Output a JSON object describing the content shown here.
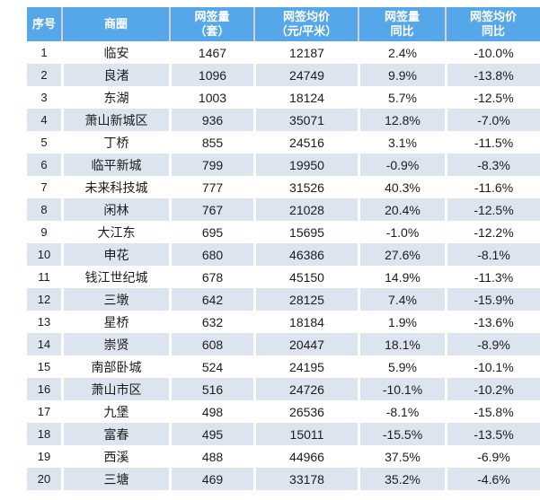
{
  "chart_data": {
    "type": "table",
    "title": "",
    "columns": [
      {
        "id": "rank",
        "line1": "序号",
        "line2": ""
      },
      {
        "id": "district",
        "line1": "商圈",
        "line2": ""
      },
      {
        "id": "volume",
        "line1": "网签量",
        "line2": "（套）"
      },
      {
        "id": "avg_price",
        "line1": "网签均价",
        "line2": "（元/平米）"
      },
      {
        "id": "volume_yoy",
        "line1": "网签量",
        "line2": "同比"
      },
      {
        "id": "price_yoy",
        "line1": "网签均价",
        "line2": "同比"
      }
    ],
    "rows": [
      {
        "rank": "1",
        "district": "临安",
        "volume": "1467",
        "avg_price": "12187",
        "volume_yoy": "2.4%",
        "price_yoy": "-10.0%"
      },
      {
        "rank": "2",
        "district": "良渚",
        "volume": "1096",
        "avg_price": "24749",
        "volume_yoy": "9.9%",
        "price_yoy": "-13.8%"
      },
      {
        "rank": "3",
        "district": "东湖",
        "volume": "1003",
        "avg_price": "18124",
        "volume_yoy": "5.7%",
        "price_yoy": "-12.5%"
      },
      {
        "rank": "4",
        "district": "萧山新城区",
        "volume": "936",
        "avg_price": "35071",
        "volume_yoy": "12.8%",
        "price_yoy": "-7.0%"
      },
      {
        "rank": "5",
        "district": "丁桥",
        "volume": "855",
        "avg_price": "24516",
        "volume_yoy": "3.1%",
        "price_yoy": "-11.5%"
      },
      {
        "rank": "6",
        "district": "临平新城",
        "volume": "799",
        "avg_price": "19950",
        "volume_yoy": "-0.9%",
        "price_yoy": "-8.3%"
      },
      {
        "rank": "7",
        "district": "未来科技城",
        "volume": "777",
        "avg_price": "31526",
        "volume_yoy": "40.3%",
        "price_yoy": "-11.6%"
      },
      {
        "rank": "8",
        "district": "闲林",
        "volume": "767",
        "avg_price": "21028",
        "volume_yoy": "20.4%",
        "price_yoy": "-12.5%"
      },
      {
        "rank": "9",
        "district": "大江东",
        "volume": "695",
        "avg_price": "15695",
        "volume_yoy": "-1.0%",
        "price_yoy": "-12.2%"
      },
      {
        "rank": "10",
        "district": "申花",
        "volume": "680",
        "avg_price": "46386",
        "volume_yoy": "27.6%",
        "price_yoy": "-8.1%"
      },
      {
        "rank": "11",
        "district": "钱江世纪城",
        "volume": "678",
        "avg_price": "45150",
        "volume_yoy": "14.9%",
        "price_yoy": "-11.3%"
      },
      {
        "rank": "12",
        "district": "三墩",
        "volume": "642",
        "avg_price": "28125",
        "volume_yoy": "7.4%",
        "price_yoy": "-15.9%"
      },
      {
        "rank": "13",
        "district": "星桥",
        "volume": "632",
        "avg_price": "18184",
        "volume_yoy": "1.9%",
        "price_yoy": "-13.6%"
      },
      {
        "rank": "14",
        "district": "崇贤",
        "volume": "608",
        "avg_price": "20447",
        "volume_yoy": "18.1%",
        "price_yoy": "-8.9%"
      },
      {
        "rank": "15",
        "district": "南部卧城",
        "volume": "524",
        "avg_price": "24195",
        "volume_yoy": "5.9%",
        "price_yoy": "-10.1%"
      },
      {
        "rank": "16",
        "district": "萧山市区",
        "volume": "516",
        "avg_price": "24726",
        "volume_yoy": "-10.1%",
        "price_yoy": "-10.2%"
      },
      {
        "rank": "17",
        "district": "九堡",
        "volume": "498",
        "avg_price": "26536",
        "volume_yoy": "-8.1%",
        "price_yoy": "-15.8%"
      },
      {
        "rank": "18",
        "district": "富春",
        "volume": "495",
        "avg_price": "15011",
        "volume_yoy": "-15.5%",
        "price_yoy": "-13.5%"
      },
      {
        "rank": "19",
        "district": "西溪",
        "volume": "488",
        "avg_price": "44966",
        "volume_yoy": "37.5%",
        "price_yoy": "-6.9%"
      },
      {
        "rank": "20",
        "district": "三塘",
        "volume": "469",
        "avg_price": "33178",
        "volume_yoy": "35.2%",
        "price_yoy": "-4.6%"
      }
    ],
    "layout": {
      "striped_rows": "even",
      "grid": "off",
      "legend": "none"
    },
    "colors": {
      "header_bg": "#55a7ea",
      "header_text": "#ffffff",
      "stripe_bg": "#dce4f0",
      "body_text": "#1c1c1c",
      "header_separator": "#d2d2d2"
    }
  }
}
